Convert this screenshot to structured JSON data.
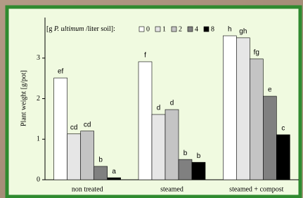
{
  "chart_data": {
    "type": "bar",
    "y_label": "Plant weight [g/pot]",
    "legend_title": [
      "[g ",
      "P. ultimum",
      " /liter soil]:"
    ],
    "categories": [
      "non treated",
      "steamed",
      "steamed + compost"
    ],
    "series": [
      {
        "name": "0",
        "color": "#ffffff",
        "values": [
          2.51,
          2.91,
          3.55
        ],
        "letters": [
          "ef",
          "f",
          "h"
        ]
      },
      {
        "name": "1",
        "color": "#e6e6e6",
        "values": [
          1.13,
          1.61,
          3.5
        ],
        "letters": [
          "cd",
          "d",
          "gh"
        ]
      },
      {
        "name": "2",
        "color": "#c4c4c4",
        "values": [
          1.2,
          1.73,
          2.98
        ],
        "letters": [
          "cd",
          "d",
          "fg"
        ]
      },
      {
        "name": "4",
        "color": "#808080",
        "values": [
          0.33,
          0.5,
          2.06
        ],
        "letters": [
          "b",
          "b",
          "e"
        ]
      },
      {
        "name": "8",
        "color": "#000000",
        "values": [
          0.05,
          0.43,
          1.11
        ],
        "letters": [
          "a",
          "b",
          "c"
        ]
      }
    ],
    "ylim": [
      0,
      4
    ],
    "yticks": [
      0,
      1,
      2,
      3
    ]
  }
}
